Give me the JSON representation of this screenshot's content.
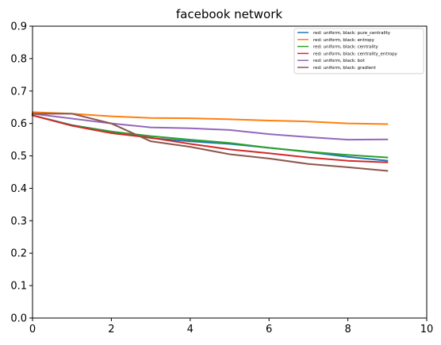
{
  "chart_data": {
    "type": "line",
    "title": "facebook network",
    "xlabel": "",
    "ylabel": "",
    "xlim": [
      0,
      10
    ],
    "ylim": [
      0.0,
      0.9
    ],
    "xticks": [
      0,
      2,
      4,
      6,
      8,
      10
    ],
    "yticks": [
      0.0,
      0.1,
      0.2,
      0.3,
      0.4,
      0.5,
      0.6,
      0.7,
      0.8,
      0.9
    ],
    "xtick_labels": [
      "0",
      "2",
      "4",
      "6",
      "8",
      "10"
    ],
    "ytick_labels": [
      "0.0",
      "0.1",
      "0.2",
      "0.3",
      "0.4",
      "0.5",
      "0.6",
      "0.7",
      "0.8",
      "0.9"
    ],
    "grid": false,
    "legend_position": "top-right",
    "x": [
      0,
      1,
      2,
      3,
      4,
      5,
      6,
      7,
      8,
      9
    ],
    "series": [
      {
        "name": "red: uniform, black: pure_centrality",
        "color": "#1f77b4",
        "values": [
          0.625,
          0.595,
          0.575,
          0.555,
          0.545,
          0.537,
          0.525,
          0.512,
          0.497,
          0.485
        ]
      },
      {
        "name": "red: uniform, black: entropy",
        "color": "#ff7f0e",
        "values": [
          0.635,
          0.63,
          0.622,
          0.617,
          0.616,
          0.613,
          0.609,
          0.606,
          0.6,
          0.598
        ]
      },
      {
        "name": "red: uniform, black: centrality",
        "color": "#2ca02c",
        "values": [
          0.625,
          0.594,
          0.575,
          0.561,
          0.55,
          0.54,
          0.525,
          0.513,
          0.503,
          0.495
        ]
      },
      {
        "name": "red: uniform, black: centrality_entropy",
        "color": "#d62728",
        "values": [
          0.625,
          0.593,
          0.57,
          0.556,
          0.537,
          0.52,
          0.508,
          0.495,
          0.485,
          0.48
        ]
      },
      {
        "name": "red: uniform, black: bot",
        "color": "#9467bd",
        "values": [
          0.63,
          0.615,
          0.6,
          0.588,
          0.585,
          0.58,
          0.567,
          0.558,
          0.55,
          0.551
        ]
      },
      {
        "name": "red: uniform, black: gradient",
        "color": "#8c564b",
        "values": [
          0.63,
          0.63,
          0.6,
          0.545,
          0.528,
          0.505,
          0.492,
          0.475,
          0.465,
          0.454
        ]
      }
    ]
  }
}
